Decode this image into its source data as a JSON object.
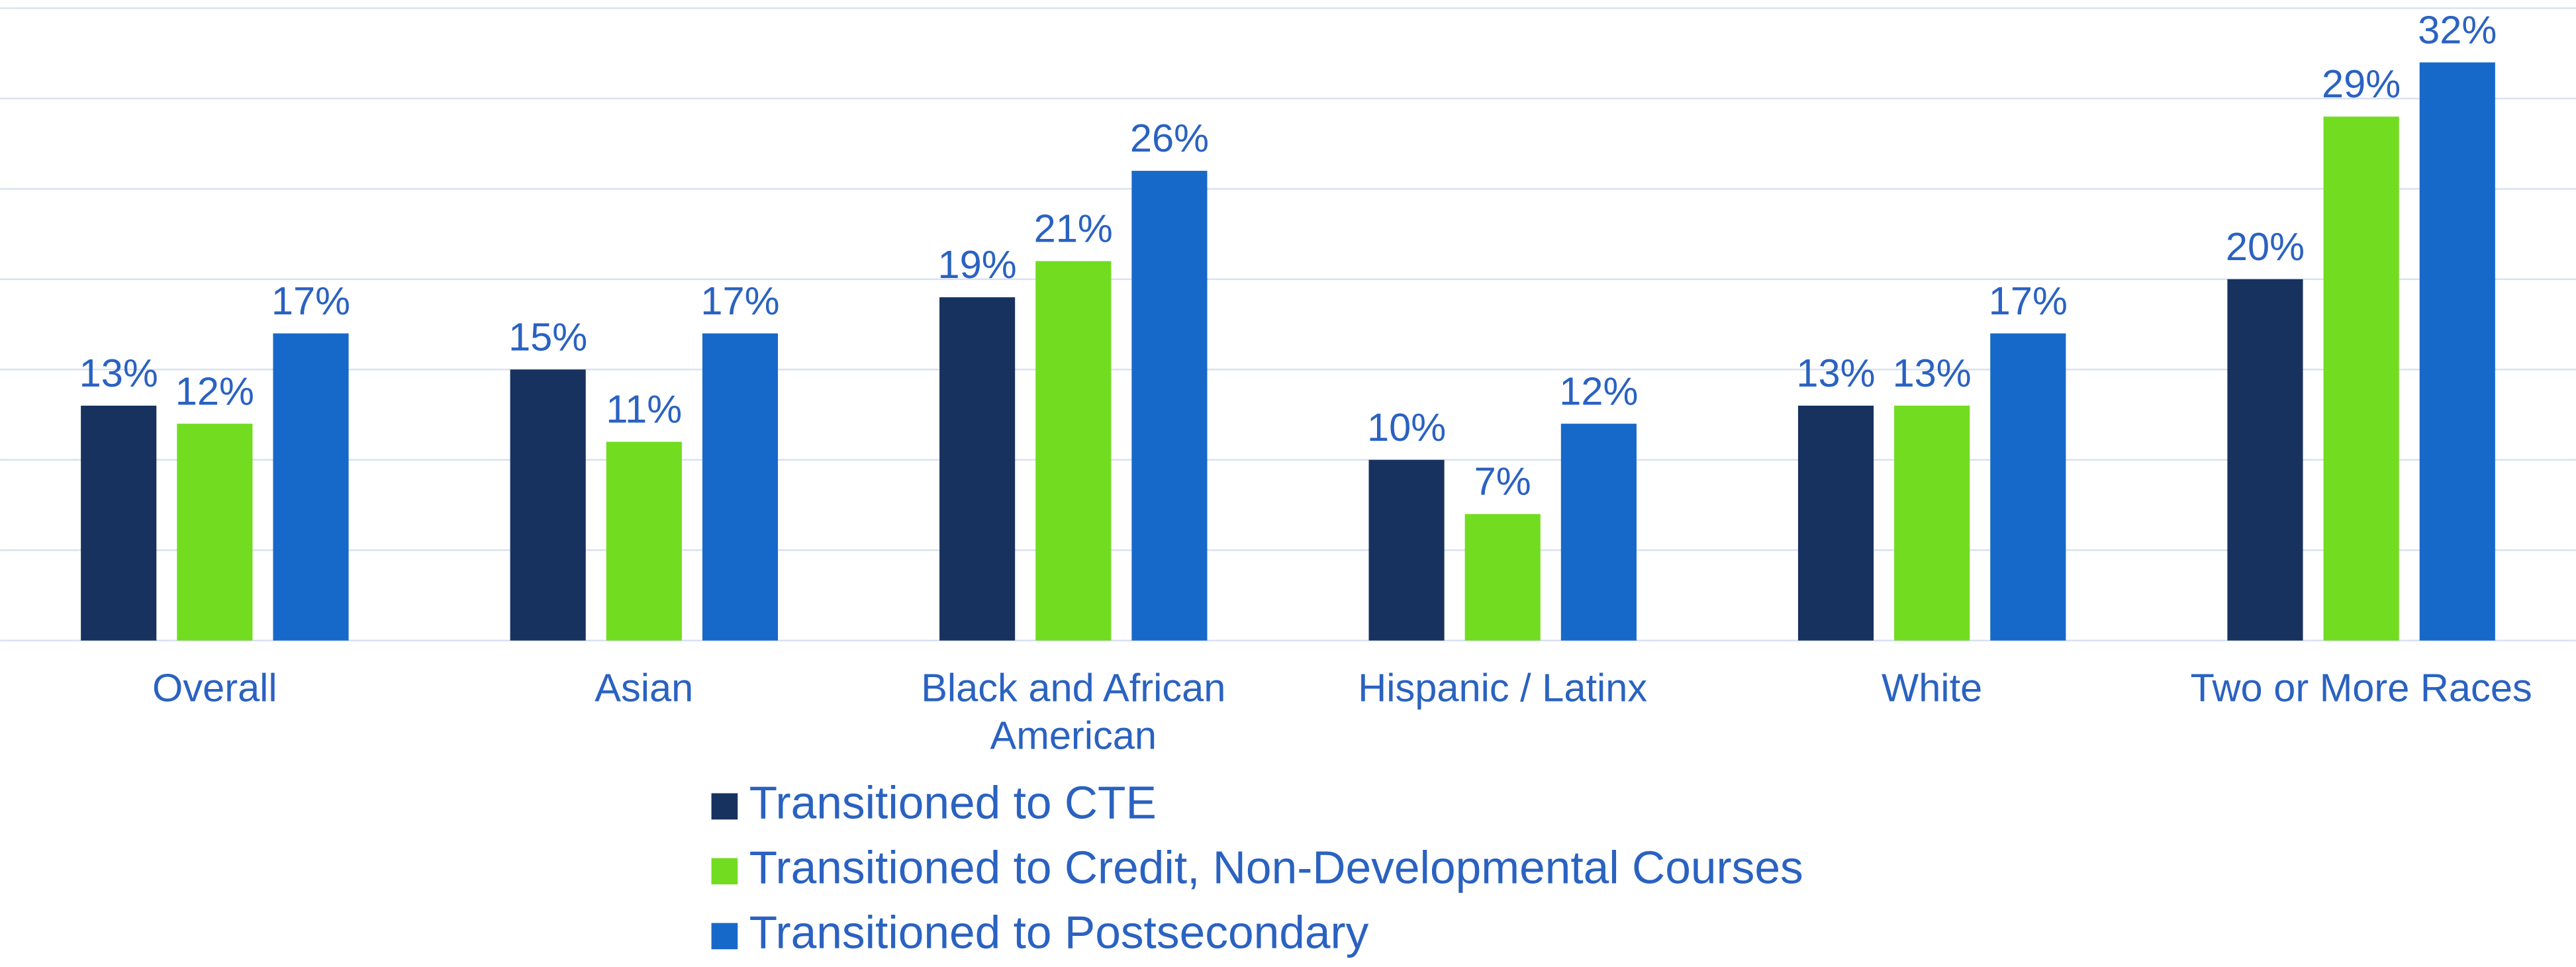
{
  "chart_data": {
    "type": "bar",
    "categories": [
      "Overall",
      "Asian",
      "Black and African American",
      "Hispanic / Latinx",
      "White",
      "Two or More Races"
    ],
    "series": [
      {
        "name": "Transitioned to CTE",
        "color": "#17325f",
        "values": [
          13,
          15,
          19,
          10,
          13,
          20
        ],
        "value_labels": [
          "13%",
          "15%",
          "19%",
          "10%",
          "13%",
          "20%"
        ]
      },
      {
        "name": "Transitioned to Credit, Non-Developmental Courses",
        "color": "#72dc20",
        "values": [
          12,
          11,
          21,
          7,
          13,
          29
        ],
        "value_labels": [
          "12%",
          "11%",
          "21%",
          "7%",
          "13%",
          "29%"
        ]
      },
      {
        "name": "Transitioned to Postsecondary",
        "color": "#1769c9",
        "values": [
          17,
          17,
          26,
          12,
          17,
          32
        ],
        "value_labels": [
          "17%",
          "17%",
          "26%",
          "12%",
          "17%",
          "32%"
        ]
      }
    ],
    "ylim": [
      0,
      35
    ],
    "yticks": [
      0,
      5,
      10,
      15,
      20,
      25,
      30,
      35
    ],
    "grid": true,
    "legend": "bottom"
  }
}
